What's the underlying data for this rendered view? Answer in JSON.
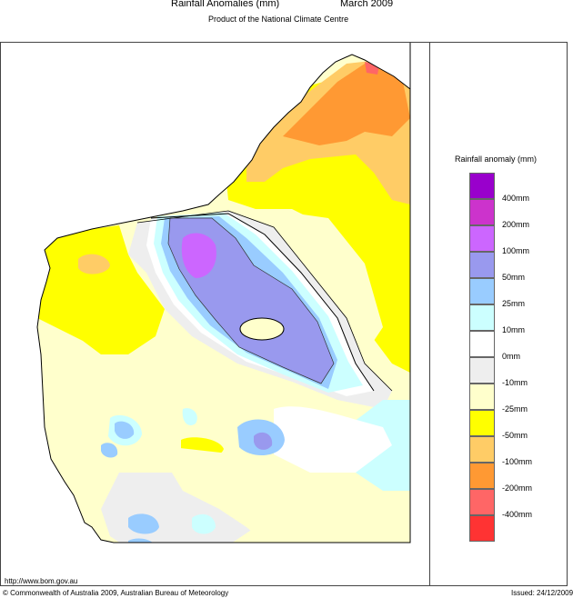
{
  "header": {
    "title": "Rainfall Anomalies (mm)",
    "date": "March 2009",
    "subtitle": "Product of the National Climate Centre"
  },
  "legend": {
    "title": "Rainfall anomaly (mm)",
    "items": [
      {
        "label": "400mm",
        "color": "#9900cc"
      },
      {
        "label": "200mm",
        "color": "#cc33cc"
      },
      {
        "label": "100mm",
        "color": "#cc66ff"
      },
      {
        "label": "50mm",
        "color": "#9999ee"
      },
      {
        "label": "25mm",
        "color": "#99ccff"
      },
      {
        "label": "10mm",
        "color": "#ccffff"
      },
      {
        "label": "0mm",
        "color": "#ffffff"
      },
      {
        "label": "-10mm",
        "color": "#eeeeee"
      },
      {
        "label": "-25mm",
        "color": "#ffffcc"
      },
      {
        "label": "-50mm",
        "color": "#ffff00"
      },
      {
        "label": "-100mm",
        "color": "#ffcc66"
      },
      {
        "label": "-200mm",
        "color": "#ff9933"
      },
      {
        "label": "-400mm",
        "color": "#ff6666"
      },
      {
        "label": "",
        "color": "#ff3333"
      }
    ]
  },
  "footer": {
    "url": "http://www.bom.gov.au",
    "copyright": "© Commonwealth of Australia 2009, Australian Bureau of Meteorology",
    "issued": "Issued: 24/12/2009"
  }
}
